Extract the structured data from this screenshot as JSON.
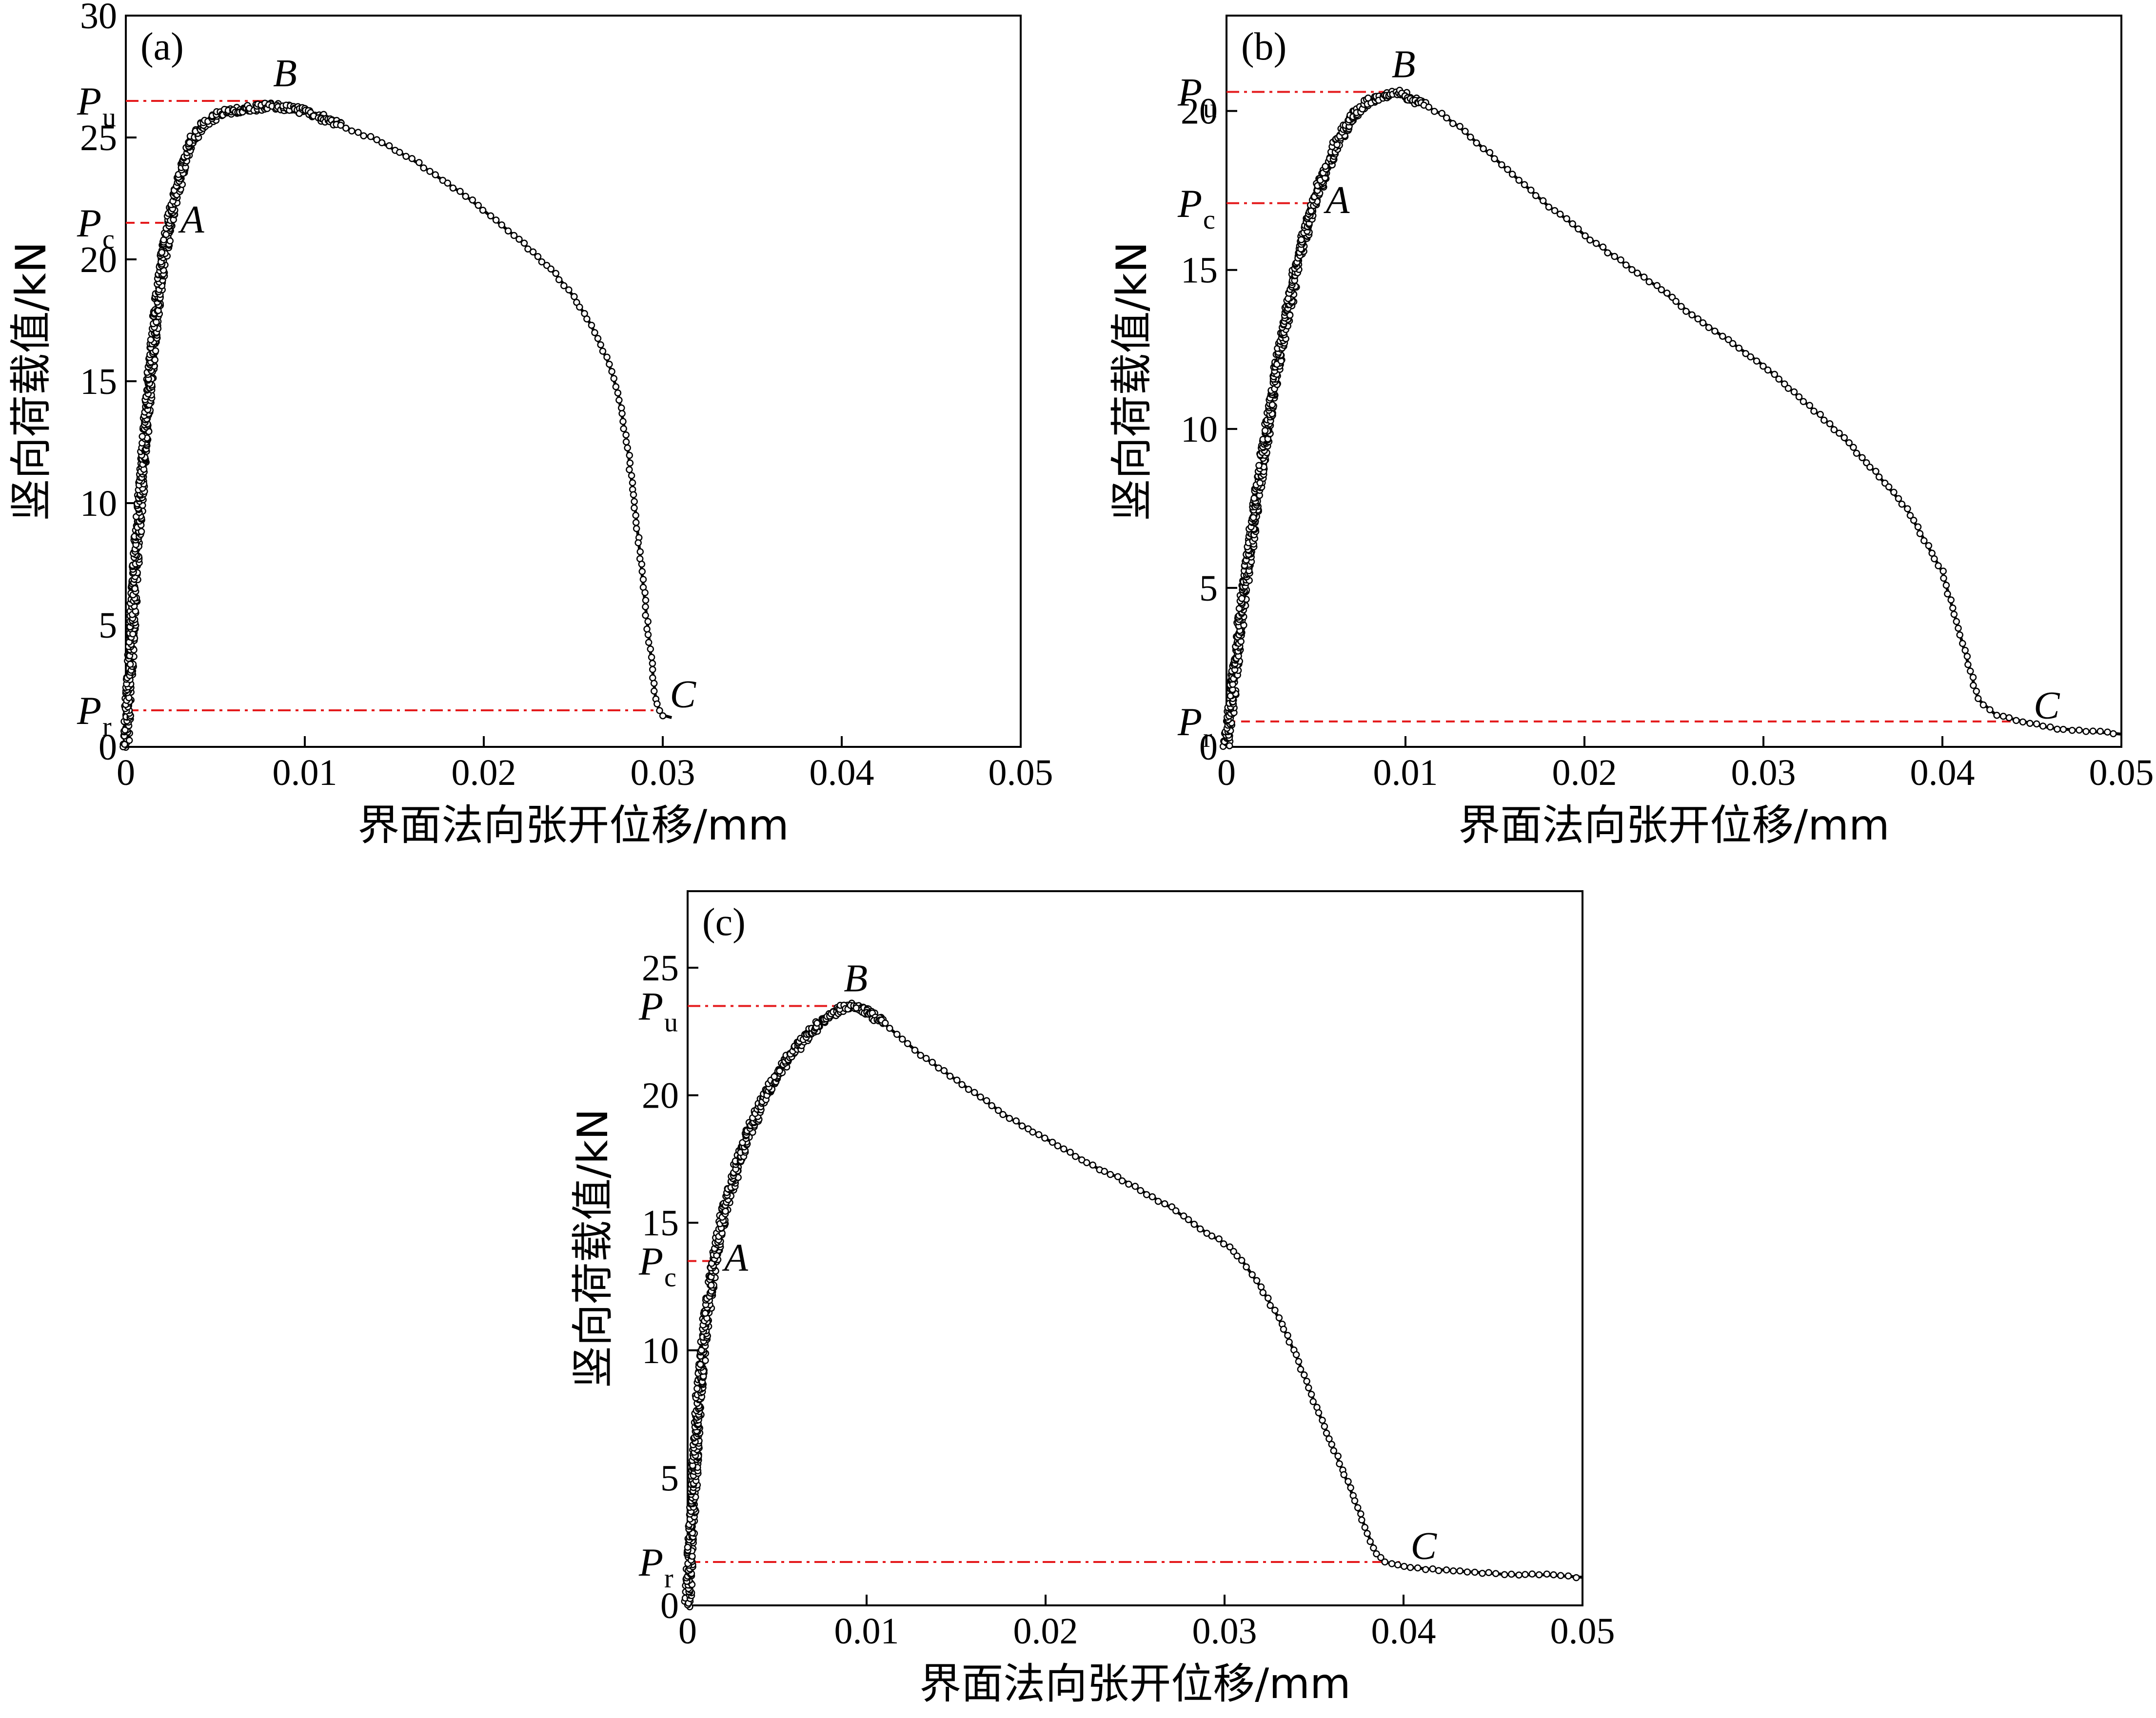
{
  "chart_data": [
    {
      "type": "line",
      "panel": "(a)",
      "xlabel": "界面法向张开位移/mm",
      "ylabel": "竖向荷载值/kN",
      "xlim": [
        0,
        0.05
      ],
      "ylim": [
        0,
        30
      ],
      "xticks": [
        "0",
        "0.01",
        "0.02",
        "0.03",
        "0.04",
        "0.05"
      ],
      "yticks": [
        "0",
        "5",
        "10",
        "15",
        "20",
        "25",
        "30"
      ],
      "xtick_values": [
        0,
        0.01,
        0.02,
        0.03,
        0.04,
        0.05
      ],
      "ytick_values": [
        0,
        5,
        10,
        15,
        20,
        25,
        30
      ],
      "ref_lines": [
        {
          "symbol": "P",
          "sub": "u",
          "y": 26.5,
          "x_end": 0.0085,
          "style": "dashdot"
        },
        {
          "symbol": "P",
          "sub": "c",
          "y": 21.5,
          "x_end": 0.0025,
          "style": "dashed"
        },
        {
          "symbol": "P",
          "sub": "r",
          "y": 1.5,
          "x_end": 0.0298,
          "style": "dashdot"
        }
      ],
      "points": [
        {
          "label": "A",
          "x": 0.0025,
          "y": 21.5
        },
        {
          "label": "B",
          "x": 0.0085,
          "y": 26.5
        },
        {
          "label": "C",
          "x": 0.0298,
          "y": 1.5
        }
      ],
      "x": [
        0,
        0.0003,
        0.0006,
        0.001,
        0.0014,
        0.0018,
        0.0022,
        0.0026,
        0.003,
        0.0035,
        0.004,
        0.005,
        0.006,
        0.007,
        0.008,
        0.009,
        0.01,
        0.011,
        0.012,
        0.013,
        0.014,
        0.015,
        0.016,
        0.017,
        0.018,
        0.019,
        0.02,
        0.021,
        0.022,
        0.023,
        0.024,
        0.025,
        0.026,
        0.027,
        0.0275,
        0.028,
        0.0285,
        0.029,
        0.0293,
        0.0296,
        0.0298,
        0.03,
        0.0305
      ],
      "y": [
        0,
        4,
        8,
        12,
        15.5,
        18.5,
        20.5,
        22,
        23.3,
        24.5,
        25.3,
        25.9,
        26.1,
        26.2,
        26.3,
        26.2,
        26.1,
        25.8,
        25.5,
        25.2,
        24.9,
        24.5,
        24.1,
        23.6,
        23.1,
        22.6,
        22.0,
        21.4,
        20.8,
        20.1,
        19.4,
        18.5,
        17.3,
        15.7,
        14.5,
        12.5,
        9.5,
        6.0,
        4.0,
        2.0,
        1.5,
        1.3,
        1.2
      ]
    },
    {
      "type": "line",
      "panel": "(b)",
      "xlabel": "界面法向张开位移/mm",
      "ylabel": "竖向荷载值/kN",
      "xlim": [
        0,
        0.05
      ],
      "ylim": [
        0,
        23
      ],
      "xticks": [
        "0",
        "0.01",
        "0.02",
        "0.03",
        "0.04",
        "0.05"
      ],
      "yticks": [
        "0",
        "5",
        "10",
        "15",
        "20"
      ],
      "xtick_values": [
        0,
        0.01,
        0.02,
        0.03,
        0.04,
        0.05
      ],
      "ytick_values": [
        0,
        5,
        10,
        15,
        20
      ],
      "ref_lines": [
        {
          "symbol": "P",
          "sub": "u",
          "y": 20.6,
          "x_end": 0.0095,
          "style": "dashdot"
        },
        {
          "symbol": "P",
          "sub": "c",
          "y": 17.1,
          "x_end": 0.005,
          "style": "dashdot"
        },
        {
          "symbol": "P",
          "sub": "r",
          "y": 0.8,
          "x_end": 0.0445,
          "style": "dashed"
        }
      ],
      "points": [
        {
          "label": "A",
          "x": 0.005,
          "y": 17.1
        },
        {
          "label": "B",
          "x": 0.0095,
          "y": 20.6
        },
        {
          "label": "C",
          "x": 0.0445,
          "y": 0.8
        }
      ],
      "x": [
        0,
        0.0005,
        0.001,
        0.002,
        0.003,
        0.004,
        0.005,
        0.006,
        0.007,
        0.008,
        0.009,
        0.0095,
        0.01,
        0.011,
        0.012,
        0.013,
        0.014,
        0.015,
        0.016,
        0.017,
        0.018,
        0.019,
        0.02,
        0.022,
        0.024,
        0.026,
        0.028,
        0.03,
        0.032,
        0.034,
        0.036,
        0.038,
        0.04,
        0.041,
        0.042,
        0.043,
        0.0445,
        0.046,
        0.048,
        0.05
      ],
      "y": [
        0,
        2.5,
        5,
        9,
        12.5,
        15.3,
        17.3,
        18.8,
        19.8,
        20.3,
        20.5,
        20.6,
        20.5,
        20.2,
        19.9,
        19.5,
        19.0,
        18.5,
        18.0,
        17.5,
        17.0,
        16.6,
        16.1,
        15.3,
        14.5,
        13.6,
        12.8,
        12.0,
        11.0,
        10.0,
        8.8,
        7.5,
        5.5,
        3.5,
        1.5,
        1.0,
        0.8,
        0.6,
        0.5,
        0.4
      ]
    },
    {
      "type": "line",
      "panel": "(c)",
      "xlabel": "界面法向张开位移/mm",
      "ylabel": "竖向荷载值/kN",
      "xlim": [
        0,
        0.05
      ],
      "ylim": [
        0,
        28
      ],
      "xticks": [
        "0",
        "0.01",
        "0.02",
        "0.03",
        "0.04",
        "0.05"
      ],
      "yticks": [
        "0",
        "5",
        "10",
        "15",
        "20",
        "25"
      ],
      "xtick_values": [
        0,
        0.01,
        0.02,
        0.03,
        0.04,
        0.05
      ],
      "ytick_values": [
        0,
        5,
        10,
        15,
        20,
        25
      ],
      "ref_lines": [
        {
          "symbol": "P",
          "sub": "u",
          "y": 23.5,
          "x_end": 0.009,
          "style": "dashdot"
        },
        {
          "symbol": "P",
          "sub": "c",
          "y": 13.5,
          "x_end": 0.0015,
          "style": "dashed"
        },
        {
          "symbol": "P",
          "sub": "r",
          "y": 1.7,
          "x_end": 0.0398,
          "style": "dashdot"
        }
      ],
      "points": [
        {
          "label": "A",
          "x": 0.0015,
          "y": 13.5
        },
        {
          "label": "B",
          "x": 0.009,
          "y": 23.5
        },
        {
          "label": "C",
          "x": 0.0398,
          "y": 1.7
        }
      ],
      "x": [
        0,
        0.0003,
        0.0006,
        0.001,
        0.0015,
        0.002,
        0.003,
        0.004,
        0.005,
        0.006,
        0.007,
        0.008,
        0.009,
        0.01,
        0.011,
        0.012,
        0.013,
        0.014,
        0.015,
        0.016,
        0.017,
        0.018,
        0.019,
        0.02,
        0.021,
        0.022,
        0.023,
        0.024,
        0.025,
        0.026,
        0.027,
        0.028,
        0.029,
        0.03,
        0.031,
        0.032,
        0.033,
        0.034,
        0.035,
        0.036,
        0.037,
        0.038,
        0.0385,
        0.039,
        0.04,
        0.042,
        0.044,
        0.046,
        0.048,
        0.05
      ],
      "y": [
        0,
        4,
        8,
        11,
        13.5,
        15.3,
        17.8,
        19.5,
        20.8,
        21.8,
        22.6,
        23.2,
        23.5,
        23.3,
        22.8,
        22.2,
        21.6,
        21.1,
        20.6,
        20.1,
        19.6,
        19.1,
        18.7,
        18.3,
        17.9,
        17.5,
        17.1,
        16.8,
        16.4,
        16.0,
        15.6,
        15.1,
        14.6,
        14.2,
        13.5,
        12.5,
        11.3,
        9.8,
        8.0,
        6.3,
        4.6,
        2.8,
        2.0,
        1.7,
        1.5,
        1.4,
        1.3,
        1.2,
        1.2,
        1.1
      ]
    }
  ]
}
